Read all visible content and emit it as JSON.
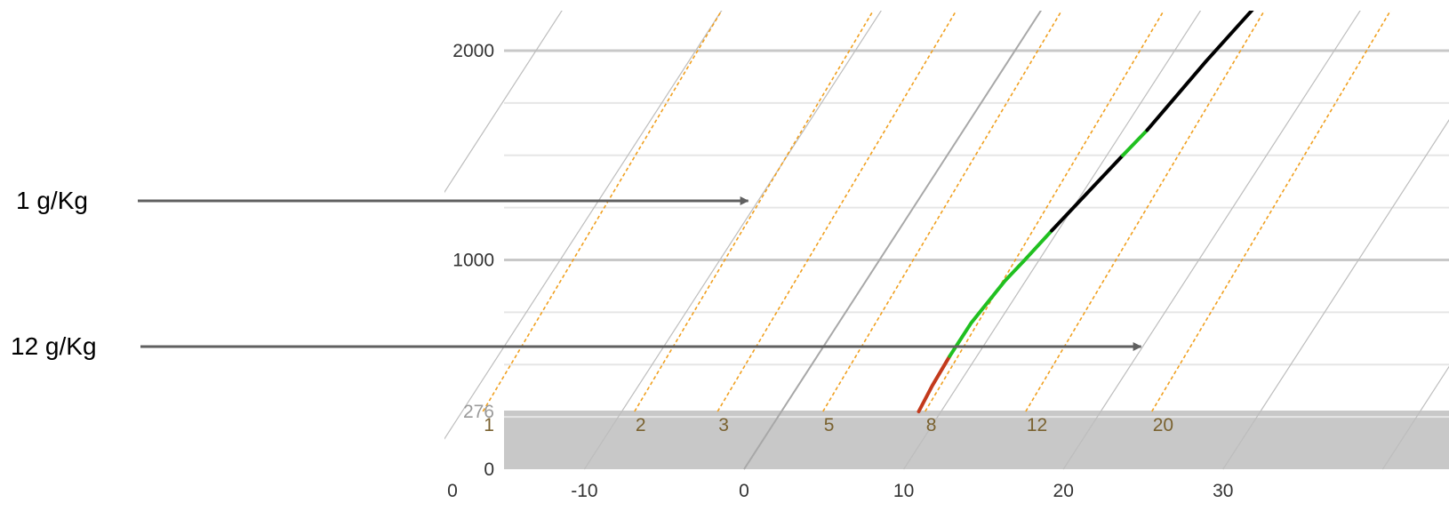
{
  "chart_data": {
    "type": "line",
    "y_ticks": [
      {
        "value": 2000,
        "label": "2000"
      },
      {
        "value": 1000,
        "label": "1000"
      },
      {
        "value": 276,
        "label": "276",
        "muted": true
      },
      {
        "value": 0,
        "label": "0"
      }
    ],
    "x_ticks": [
      {
        "value": -10,
        "label": "-10"
      },
      {
        "value": 0,
        "label": "0"
      },
      {
        "value": 10,
        "label": "10"
      },
      {
        "value": 20,
        "label": "20"
      },
      {
        "value": 30,
        "label": "30"
      }
    ],
    "x_origin_label": "0",
    "ground_level": 276,
    "ylim": [
      0,
      2250
    ],
    "xlim": [
      -19,
      40
    ],
    "mixing_ratio_lines": [
      {
        "label": "1",
        "x_at_ground": -18.7
      },
      {
        "label": "2",
        "x_at_ground": -9.2
      },
      {
        "label": "3",
        "x_at_ground": -4.0
      },
      {
        "label": "5",
        "x_at_ground": 2.6
      },
      {
        "label": "8",
        "x_at_ground": 9.0
      },
      {
        "label": "12",
        "x_at_ground": 15.3
      },
      {
        "label": "20",
        "x_at_ground": 23.2
      }
    ],
    "series": [
      {
        "color": "#c33a1c",
        "points": [
          [
            8.6,
            276
          ],
          [
            8.4,
            400
          ],
          [
            8.3,
            540
          ]
        ]
      },
      {
        "color": "#20c020",
        "points": [
          [
            8.3,
            540
          ],
          [
            8.3,
            700
          ],
          [
            8.7,
            900
          ],
          [
            9.1,
            1000
          ],
          [
            9.6,
            1140
          ]
        ]
      },
      {
        "color": "#000000",
        "points": [
          [
            9.6,
            1140
          ],
          [
            11.0,
            1500
          ]
        ]
      },
      {
        "color": "#20c020",
        "points": [
          [
            11.0,
            1500
          ],
          [
            11.5,
            1620
          ]
        ]
      },
      {
        "color": "#000000",
        "points": [
          [
            11.5,
            1620
          ],
          [
            12.4,
            1950
          ],
          [
            13.4,
            2250
          ]
        ]
      }
    ],
    "annotations": [
      {
        "text": "1 g/Kg",
        "target": {
          "x": -9.5,
          "y": 1150
        }
      },
      {
        "text": "12 g/Kg",
        "target": {
          "x": 20.2,
          "y": 550
        }
      }
    ],
    "colors": {
      "ground_fill": "#c8c8c8",
      "mixing_line": "#f0a020",
      "isotherm": "#bdbdbd",
      "grid_major": "#c8c8c8",
      "grid_minor": "#e6e6e6",
      "arrow": "#606060"
    }
  }
}
